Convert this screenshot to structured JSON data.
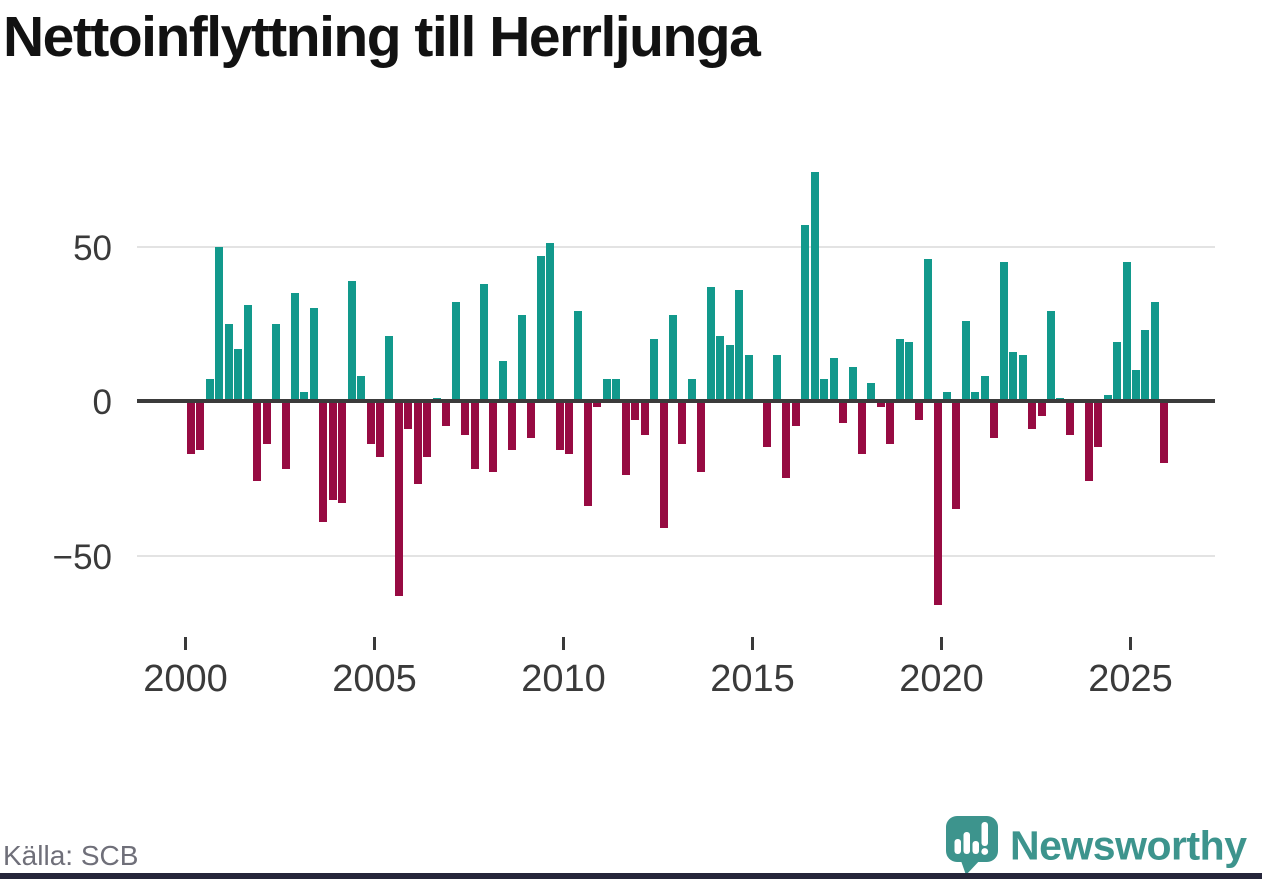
{
  "page": {
    "title": "Nettoinflyttning till Herrljunga",
    "source": "Källa: SCB",
    "brand": "Newsworthy"
  },
  "colors": {
    "positive": "#12998c",
    "negative": "#970b42",
    "brand_teal": "#3d948d",
    "axis_text": "#3a3a3a",
    "grid": "#e3e3e3",
    "zero_line": "#3b3b3b",
    "footer_bar": "#26263a"
  },
  "chart_data": {
    "type": "bar",
    "title": "Nettoinflyttning till Herrljunga",
    "x_start": "2000 Q1",
    "x_end": "2025 Q4",
    "frequency": "quarterly",
    "grid": "horizontal",
    "legend": "none",
    "ylim": [
      -70,
      80
    ],
    "y_ticks": [
      {
        "value": 50,
        "label": "50"
      },
      {
        "value": 0,
        "label": "0"
      },
      {
        "value": -50,
        "label": "−50"
      }
    ],
    "x_ticks": [
      {
        "year": 2000,
        "label": "2000"
      },
      {
        "year": 2005,
        "label": "2005"
      },
      {
        "year": 2010,
        "label": "2010"
      },
      {
        "year": 2015,
        "label": "2015"
      },
      {
        "year": 2020,
        "label": "2020"
      },
      {
        "year": 2025,
        "label": "2025"
      }
    ],
    "bar_colors": {
      "positive": "#12998c",
      "negative": "#970b42"
    },
    "years": [
      {
        "year": 2000,
        "q": [
          -17,
          -16,
          7,
          50
        ]
      },
      {
        "year": 2001,
        "q": [
          25,
          17,
          31,
          -26
        ]
      },
      {
        "year": 2002,
        "q": [
          -14,
          25,
          -22,
          35
        ]
      },
      {
        "year": 2003,
        "q": [
          3,
          30,
          -39,
          -32
        ]
      },
      {
        "year": 2004,
        "q": [
          -33,
          39,
          8,
          -14
        ]
      },
      {
        "year": 2005,
        "q": [
          -18,
          21,
          -63,
          -9
        ]
      },
      {
        "year": 2006,
        "q": [
          -27,
          -18,
          1,
          -8
        ]
      },
      {
        "year": 2007,
        "q": [
          32,
          -11,
          -22,
          38
        ]
      },
      {
        "year": 2008,
        "q": [
          -23,
          13,
          -16,
          28
        ]
      },
      {
        "year": 2009,
        "q": [
          -12,
          47,
          51,
          -16
        ]
      },
      {
        "year": 2010,
        "q": [
          -17,
          29,
          -34,
          -2
        ]
      },
      {
        "year": 2011,
        "q": [
          7,
          7,
          -24,
          -6
        ]
      },
      {
        "year": 2012,
        "q": [
          -11,
          20,
          -41,
          28
        ]
      },
      {
        "year": 2013,
        "q": [
          -14,
          7,
          -23,
          37
        ]
      },
      {
        "year": 2014,
        "q": [
          21,
          18,
          36,
          15
        ]
      },
      {
        "year": 2015,
        "q": [
          0,
          -15,
          15,
          -25
        ]
      },
      {
        "year": 2016,
        "q": [
          -8,
          57,
          74,
          7
        ]
      },
      {
        "year": 2017,
        "q": [
          14,
          -7,
          11,
          -17
        ]
      },
      {
        "year": 2018,
        "q": [
          6,
          -2,
          -14,
          20
        ]
      },
      {
        "year": 2019,
        "q": [
          19,
          -6,
          46,
          -66
        ]
      },
      {
        "year": 2020,
        "q": [
          3,
          -35,
          26,
          3
        ]
      },
      {
        "year": 2021,
        "q": [
          8,
          -12,
          45,
          16
        ]
      },
      {
        "year": 2022,
        "q": [
          15,
          -9,
          -5,
          29
        ]
      },
      {
        "year": 2023,
        "q": [
          1,
          -11,
          0,
          -26
        ]
      },
      {
        "year": 2024,
        "q": [
          -15,
          2,
          19,
          45
        ]
      },
      {
        "year": 2025,
        "q": [
          10,
          23,
          32,
          -20
        ]
      }
    ]
  }
}
